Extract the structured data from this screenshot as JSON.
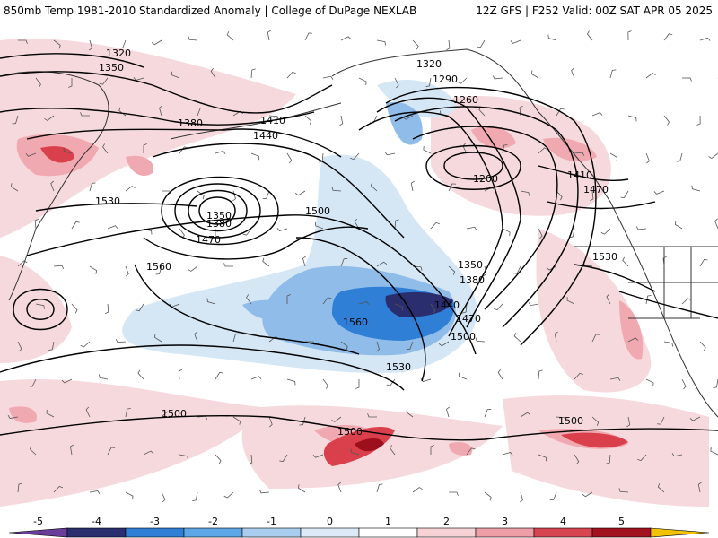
{
  "header": {
    "left": "850mb Temp 1981-2010 Standardized Anomaly | College of DuPage NEXLAB",
    "right": "12Z GFS | F252 Valid: 00Z SAT APR 05 2025"
  },
  "map": {
    "contour_labels": [
      "1320",
      "1350",
      "1380",
      "1410",
      "1440",
      "1470",
      "1500",
      "1530",
      "1560",
      "1200",
      "1260",
      "1290",
      "1320",
      "1350",
      "1380",
      "1410",
      "1440",
      "1470",
      "1500",
      "1530",
      "1560",
      "1350",
      "1380",
      "1470",
      "1500",
      "1500",
      "1500",
      "1530"
    ],
    "lows": [
      "1350",
      "1200"
    ],
    "field_colors": {
      "strong_negative": "#2b2e6e",
      "negative": "#2f7fd6",
      "weak_negative": "#8fbce8",
      "very_weak_negative": "#d5e6f5",
      "very_weak_positive": "#f6d9dc",
      "weak_positive": "#f0a9b0",
      "positive": "#d9404b",
      "strong_positive": "#9d0f1c",
      "contour": "#000000",
      "coast": "#333333",
      "barb": "#555555"
    }
  },
  "colorbar": {
    "ticks": [
      "-5",
      "-4",
      "-3",
      "-2",
      "-1",
      "0",
      "1",
      "2",
      "3",
      "4",
      "5"
    ],
    "bins": [
      {
        "from": -6,
        "to": -5,
        "color": "#6a3d9a"
      },
      {
        "from": -5,
        "to": -4,
        "color": "#2b2e6e"
      },
      {
        "from": -4,
        "to": -3,
        "color": "#2f7fd6"
      },
      {
        "from": -3,
        "to": -2,
        "color": "#5ea7e6"
      },
      {
        "from": -2,
        "to": -1,
        "color": "#a9cdee"
      },
      {
        "from": -1,
        "to": 0,
        "color": "#dde9f6"
      },
      {
        "from": 0,
        "to": 1,
        "color": "#ffffff"
      },
      {
        "from": 1,
        "to": 2,
        "color": "#f6d2d5"
      },
      {
        "from": 2,
        "to": 3,
        "color": "#ee9ea6"
      },
      {
        "from": 3,
        "to": 4,
        "color": "#d64550"
      },
      {
        "from": 4,
        "to": 5,
        "color": "#a1121e"
      },
      {
        "from": 5,
        "to": 6,
        "color": "#f2c300"
      }
    ]
  }
}
